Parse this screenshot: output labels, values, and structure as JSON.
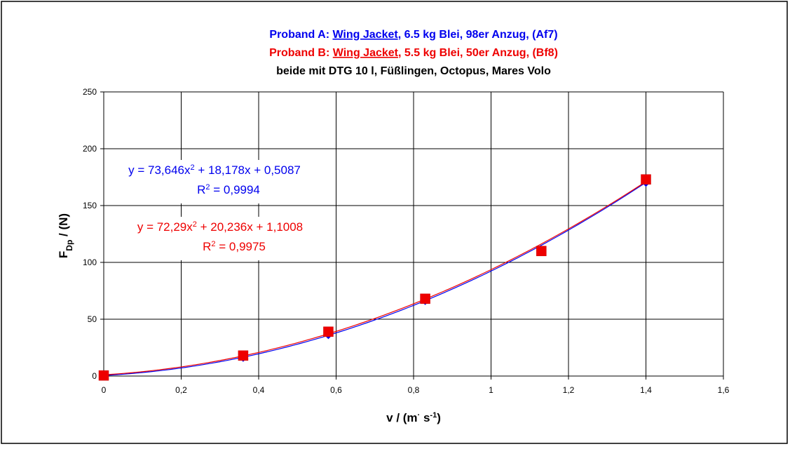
{
  "chart_data": {
    "type": "scatter",
    "title_lines": [
      {
        "color": "#0000ee",
        "segments": [
          {
            "text": "Proband A: ",
            "underline": false
          },
          {
            "text": "Wing Jacket",
            "underline": true
          },
          {
            "text": ", 6.5 kg Blei, 98er Anzug,  (Af7)",
            "underline": false
          }
        ]
      },
      {
        "color": "#ee0000",
        "segments": [
          {
            "text": "Proband B: ",
            "underline": false
          },
          {
            "text": "Wing Jacket",
            "underline": true
          },
          {
            "text": ", 5.5 kg Blei, 50er Anzug,  (Bf8)",
            "underline": false
          }
        ]
      },
      {
        "color": "#000000",
        "segments": [
          {
            "text": "beide mit DTG 10 l, Füßlingen, Octopus, Mares Volo",
            "underline": false
          }
        ]
      }
    ],
    "xlabel": {
      "main": "v / (m",
      "dot": "·",
      "mid": " s",
      "sup": "-1",
      "end": ")"
    },
    "ylabel": {
      "main": "F",
      "sub": "Dp",
      "end": " / (N)"
    },
    "xlim": [
      0,
      1.6
    ],
    "ylim": [
      0,
      250
    ],
    "x_ticks": [
      {
        "value": 0,
        "label": "0"
      },
      {
        "value": 0.2,
        "label": "0,2"
      },
      {
        "value": 0.4,
        "label": "0,4"
      },
      {
        "value": 0.6,
        "label": "0,6"
      },
      {
        "value": 0.8,
        "label": "0,8"
      },
      {
        "value": 1.0,
        "label": "1"
      },
      {
        "value": 1.2,
        "label": "1,2"
      },
      {
        "value": 1.4,
        "label": "1,4"
      },
      {
        "value": 1.6,
        "label": "1,6"
      }
    ],
    "y_ticks": [
      {
        "value": 0,
        "label": "0"
      },
      {
        "value": 50,
        "label": "50"
      },
      {
        "value": 100,
        "label": "100"
      },
      {
        "value": 150,
        "label": "150"
      },
      {
        "value": 200,
        "label": "200"
      },
      {
        "value": 250,
        "label": "250"
      }
    ],
    "grid": true,
    "series": [
      {
        "id": "a",
        "color": "#0000ee",
        "marker": "diamond",
        "x": [
          0,
          0.36,
          0.58,
          0.83,
          1.13,
          1.4
        ],
        "y": [
          0.5,
          16,
          36,
          66,
          111,
          170
        ],
        "fit_coeffs": [
          73.646,
          18.178,
          0.5087
        ],
        "equation": {
          "pre": "y = 73,646x",
          "sup": "2",
          "post": " + 18,178x + 0,5087"
        },
        "r2": {
          "pre": "R",
          "sup": "2",
          "post": " = 0,9994"
        }
      },
      {
        "id": "b",
        "color": "#ee0000",
        "marker": "square",
        "x": [
          0,
          0.36,
          0.58,
          0.83,
          1.13,
          1.4
        ],
        "y": [
          0.5,
          18,
          39,
          68,
          110,
          173
        ],
        "fit_coeffs": [
          72.29,
          20.236,
          1.1008
        ],
        "equation": {
          "pre": "y = 72,29x",
          "sup": "2",
          "post": " + 20,236x + 1,1008"
        },
        "r2": {
          "pre": "R",
          "sup": "2",
          "post": " = 0,9975"
        }
      }
    ]
  }
}
